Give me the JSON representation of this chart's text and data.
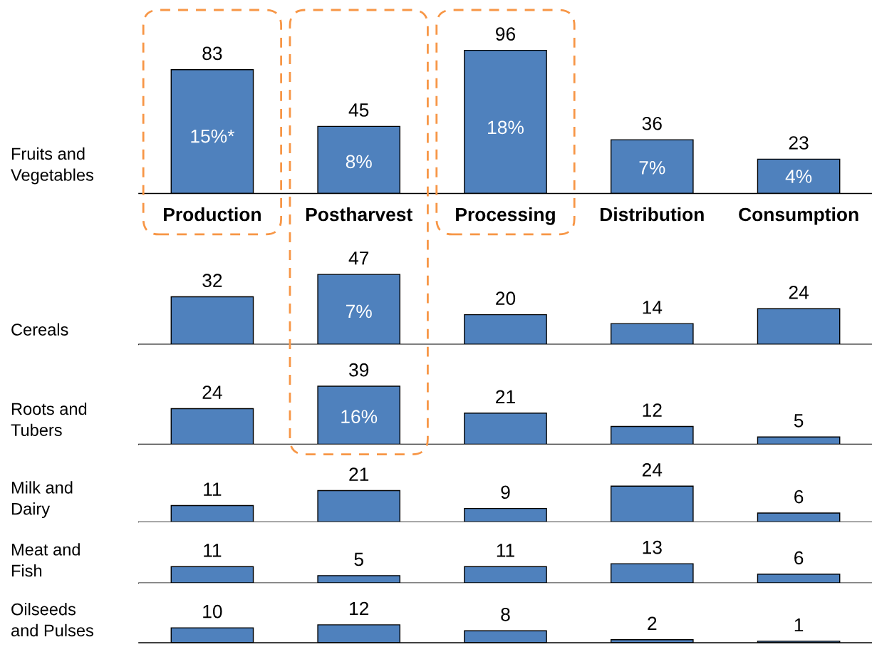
{
  "chart_data": [
    {
      "type": "bar",
      "ylabel": "Fruits and\nVegetables",
      "categories": [
        "Production",
        "Postharvest",
        "Processing",
        "Distribution",
        "Consumption"
      ],
      "values": [
        83,
        45,
        96,
        36,
        23
      ],
      "color": "#4f81bd",
      "data_labels": true,
      "tick_labels": "x",
      "annotations": [
        "15%*",
        "8%",
        "18%",
        "7%",
        "4%"
      ]
    },
    {
      "type": "bar",
      "ylabel": "Cereals",
      "values": [
        32,
        47,
        20,
        14,
        24
      ],
      "color": "#4f81bd",
      "data_labels": true,
      "tick_labels": false,
      "annotations": [
        "7%"
      ]
    },
    {
      "type": "bar",
      "ylabel": "Roots and\nTubers",
      "values": [
        24,
        39,
        21,
        12,
        5
      ],
      "color": "#4f81bd",
      "data_labels": true,
      "tick_labels": false,
      "annotations": [
        "16%"
      ]
    },
    {
      "type": "bar",
      "ylabel": "Milk and\nDairy",
      "values": [
        11,
        21,
        9,
        24,
        6
      ],
      "color": "#4f81bd",
      "data_labels": true,
      "tick_labels": false
    },
    {
      "type": "bar",
      "ylabel": "Meat and\nFish",
      "values": [
        11,
        5,
        11,
        13,
        6
      ],
      "color": "#4f81bd",
      "data_labels": true,
      "tick_labels": false
    },
    {
      "type": "bar",
      "ylabel": "Oilseeds\nand Pulses",
      "values": [
        10,
        12,
        8,
        2,
        1
      ],
      "color": "#4f81bd",
      "data_labels": true,
      "tick_labels": false
    }
  ]
}
